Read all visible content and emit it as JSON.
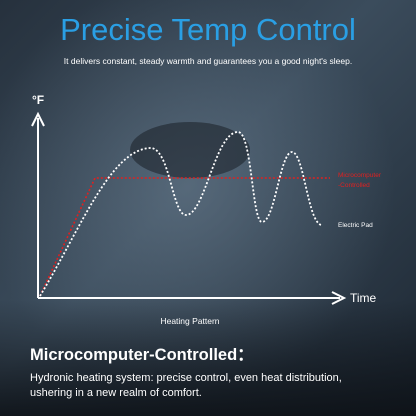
{
  "header": {
    "title": "Precise Temp Control",
    "subtitle": "It delivers constant, steady warmth and guarantees you a good night's sleep."
  },
  "chart": {
    "y_axis_label": "°F",
    "x_axis_label": "Time",
    "caption": "Heating Pattern",
    "series_labels": {
      "microcomputer": [
        "Microcomputer",
        "-Controlled"
      ],
      "electric_pad": "Electric Pad"
    }
  },
  "section": {
    "heading": "Microcomputer-Controlled：",
    "body": [
      "Hydronic heating system: precise control, even heat distribution,",
      "ushering in a new realm of comfort."
    ]
  }
}
